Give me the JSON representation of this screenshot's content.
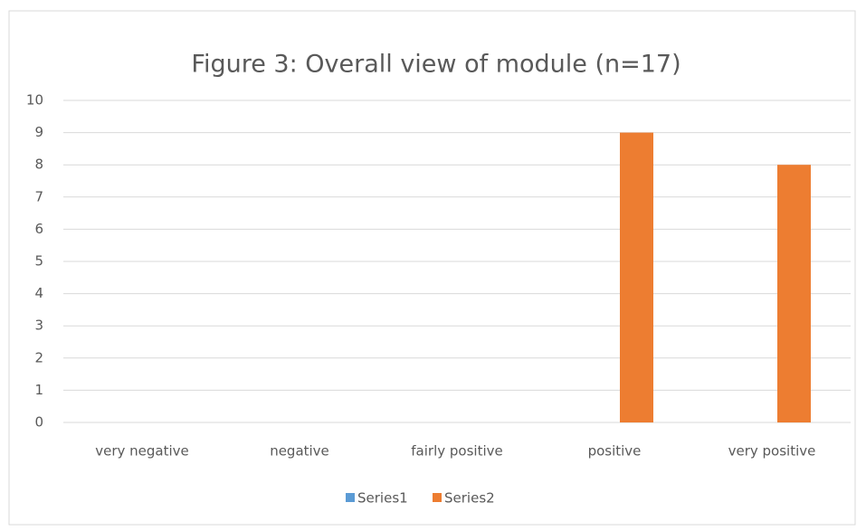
{
  "chart_data": {
    "type": "bar",
    "title": "Figure 3: Overall view of module (n=17)",
    "categories": [
      "very negative",
      "negative",
      "fairly positive",
      "positive",
      "very positive"
    ],
    "series": [
      {
        "name": "Series1",
        "color": "#5b9bd5",
        "values": [
          0,
          0,
          0,
          0,
          0
        ]
      },
      {
        "name": "Series2",
        "color": "#ed7d31",
        "values": [
          0,
          0,
          0,
          9,
          8
        ]
      }
    ],
    "ylim": [
      0,
      10
    ],
    "yticks": [
      0,
      1,
      2,
      3,
      4,
      5,
      6,
      7,
      8,
      9,
      10
    ],
    "grid": true,
    "legend": "bottom"
  }
}
